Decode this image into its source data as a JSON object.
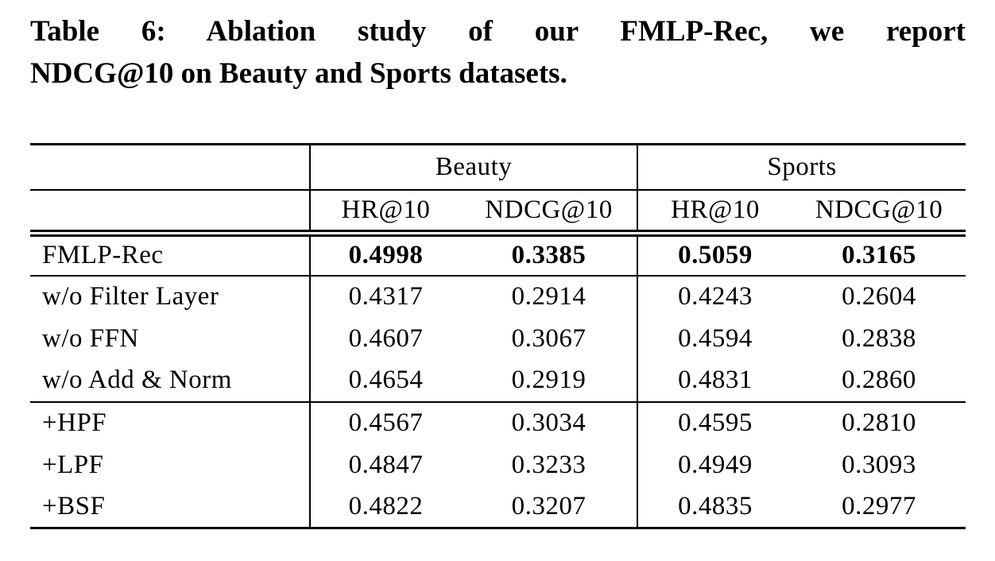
{
  "caption": {
    "line1": "Table 6: Ablation study of our FMLP-Rec, we report",
    "line2": "NDCG@10 on Beauty and Sports datasets."
  },
  "table": {
    "group_headers": {
      "beauty": "Beauty",
      "sports": "Sports"
    },
    "metric_headers": [
      "HR@10",
      "NDCG@10",
      "HR@10",
      "NDCG@10"
    ],
    "rows": [
      {
        "label": "FMLP-Rec",
        "values": [
          "0.4998",
          "0.3385",
          "0.5059",
          "0.3165"
        ],
        "bold": true
      },
      {
        "label": "w/o Filter Layer",
        "values": [
          "0.4317",
          "0.2914",
          "0.4243",
          "0.2604"
        ],
        "bold": false
      },
      {
        "label": "w/o FFN",
        "values": [
          "0.4607",
          "0.3067",
          "0.4594",
          "0.2838"
        ],
        "bold": false
      },
      {
        "label": "w/o Add & Norm",
        "values": [
          "0.4654",
          "0.2919",
          "0.4831",
          "0.2860"
        ],
        "bold": false
      },
      {
        "label": "+HPF",
        "values": [
          "0.4567",
          "0.3034",
          "0.4595",
          "0.2810"
        ],
        "bold": false
      },
      {
        "label": "+LPF",
        "values": [
          "0.4847",
          "0.3233",
          "0.4949",
          "0.3093"
        ],
        "bold": false
      },
      {
        "label": "+BSF",
        "values": [
          "0.4822",
          "0.3207",
          "0.4835",
          "0.2977"
        ],
        "bold": false
      }
    ]
  },
  "colors": {
    "text": "#000000",
    "background": "#ffffff",
    "rule": "#000000"
  }
}
